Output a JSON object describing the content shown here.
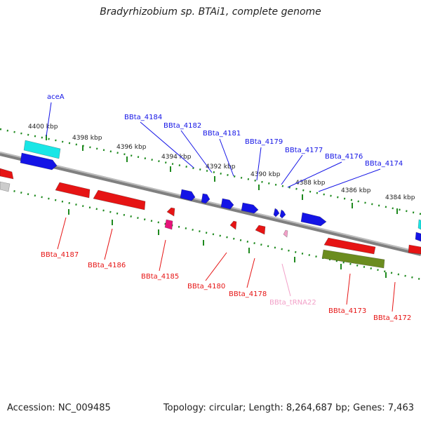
{
  "title": "Bradyrhizobium sp. BTAi1, complete genome",
  "footer": {
    "accession": "Accession: NC_009485",
    "summary": "Topology: circular; Length: 8,264,687 bp; Genes: 7,463"
  },
  "colors": {
    "forward_gene": "#1414e6",
    "reverse_gene": "#e61414",
    "trna": "#f2a0c8",
    "highlight_cyan": "#19e6e6",
    "highlight_olive": "#6b8c1f",
    "highlight_magenta": "#e6147a",
    "tick_forward": "#1f8a1f",
    "axis": "#808080"
  },
  "ticks": {
    "forward": [
      "4400 kbp",
      "4398 kbp",
      "4396 kbp",
      "4394 kbp",
      "4392 kbp",
      "4390 kbp",
      "4388 kbp",
      "4386 kbp",
      "4384 kbp"
    ]
  },
  "genes": {
    "forward": [
      "aceA",
      "BBta_4184",
      "BBta_4182",
      "BBta_4181",
      "BBta_4179",
      "BBta_4177",
      "BBta_4176",
      "BBta_4174"
    ],
    "reverse": [
      "BBta_4187",
      "BBta_4186",
      "BBta_4185",
      "BBta_4180",
      "BBta_4178",
      "BBta_tRNA22",
      "BBta_4173",
      "BBta_4172"
    ]
  }
}
